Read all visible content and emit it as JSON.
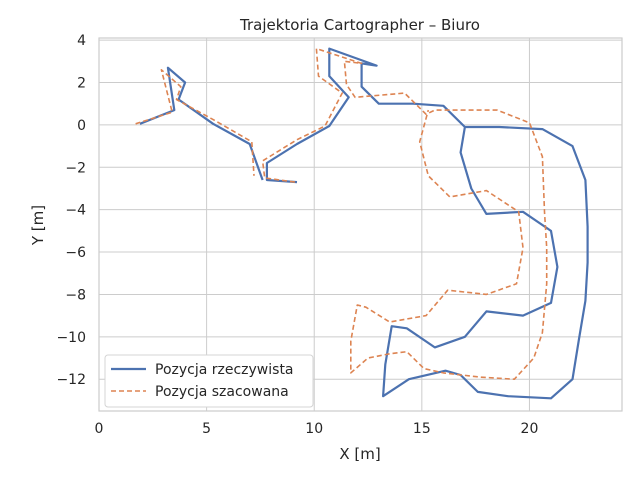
{
  "chart_data": {
    "type": "line",
    "title": "Trajektoria Cartographer – Biuro",
    "xlabel": "X [m]",
    "ylabel": "Y [m]",
    "xlim": [
      0,
      24.3
    ],
    "ylim": [
      -13.5,
      4.1
    ],
    "xticks": [
      0,
      5,
      10,
      15,
      20
    ],
    "yticks": [
      4,
      2,
      0,
      -2,
      -4,
      -6,
      -8,
      -10,
      -12
    ],
    "xtick_labels": [
      "0",
      "5",
      "10",
      "15",
      "20"
    ],
    "ytick_labels": [
      "4",
      "2",
      "0",
      "−2",
      "−4",
      "−6",
      "−8",
      "−10",
      "−12"
    ],
    "grid": true,
    "legend_position": "lower-left",
    "series": [
      {
        "name": "Pozycja rzeczywista",
        "color": "#4c72b0",
        "style": "solid",
        "points": [
          [
            9.2,
            -2.7
          ],
          [
            7.8,
            -2.6
          ],
          [
            7.8,
            -1.8
          ],
          [
            9.2,
            -0.9
          ],
          [
            10.7,
            -0.05
          ],
          [
            11.6,
            1.3
          ],
          [
            10.7,
            2.3
          ],
          [
            10.7,
            3.6
          ],
          [
            12.9,
            2.8
          ],
          [
            12.2,
            2.9
          ],
          [
            12.2,
            1.8
          ],
          [
            13.0,
            1.0
          ],
          [
            14.6,
            1.0
          ],
          [
            16.0,
            0.9
          ],
          [
            17.0,
            -0.1
          ],
          [
            18.6,
            -0.1
          ],
          [
            20.6,
            -0.2
          ],
          [
            22.0,
            -1.0
          ],
          [
            22.6,
            -2.6
          ],
          [
            22.7,
            -4.8
          ],
          [
            22.7,
            -6.5
          ],
          [
            22.6,
            -8.3
          ],
          [
            22.3,
            -10.1
          ],
          [
            22.0,
            -12.0
          ],
          [
            21.0,
            -12.9
          ],
          [
            19.0,
            -12.8
          ],
          [
            17.6,
            -12.6
          ],
          [
            16.8,
            -11.8
          ],
          [
            16.1,
            -11.6
          ],
          [
            14.4,
            -12.0
          ],
          [
            13.2,
            -12.8
          ],
          [
            13.3,
            -11.3
          ],
          [
            13.6,
            -9.5
          ],
          [
            14.3,
            -9.6
          ],
          [
            15.6,
            -10.5
          ],
          [
            17.0,
            -10.0
          ],
          [
            18.0,
            -8.8
          ],
          [
            19.7,
            -9.0
          ],
          [
            21.0,
            -8.4
          ],
          [
            21.3,
            -6.7
          ],
          [
            21.0,
            -5.0
          ],
          [
            19.7,
            -4.1
          ],
          [
            18.0,
            -4.2
          ],
          [
            17.3,
            -3.0
          ],
          [
            16.8,
            -1.3
          ],
          [
            17.0,
            -0.1
          ]
        ]
      },
      {
        "name": "Pozycja szacowana",
        "color": "#dd8452",
        "style": "dashed",
        "points": [
          [
            9.1,
            -2.7
          ],
          [
            7.7,
            -2.5
          ],
          [
            7.6,
            -1.7
          ],
          [
            9.2,
            -0.7
          ],
          [
            10.5,
            -0.05
          ],
          [
            11.3,
            1.5
          ],
          [
            10.2,
            2.3
          ],
          [
            10.1,
            3.6
          ],
          [
            12.2,
            2.9
          ],
          [
            11.4,
            3.0
          ],
          [
            11.5,
            1.9
          ],
          [
            11.9,
            1.3
          ],
          [
            14.2,
            1.5
          ],
          [
            15.2,
            0.5
          ],
          [
            15.6,
            0.7
          ],
          [
            18.5,
            0.7
          ],
          [
            20.0,
            0.1
          ],
          [
            20.6,
            -1.5
          ],
          [
            20.7,
            -4.1
          ],
          [
            20.8,
            -5.8
          ],
          [
            20.8,
            -7.5
          ],
          [
            20.6,
            -9.8
          ],
          [
            20.2,
            -11.0
          ],
          [
            19.3,
            -12.0
          ],
          [
            17.7,
            -11.9
          ],
          [
            16.0,
            -11.7
          ],
          [
            15.1,
            -11.5
          ],
          [
            14.3,
            -10.7
          ],
          [
            13.5,
            -10.8
          ],
          [
            12.5,
            -11.0
          ],
          [
            11.7,
            -11.7
          ],
          [
            11.7,
            -10.2
          ],
          [
            12.0,
            -8.5
          ],
          [
            12.4,
            -8.6
          ],
          [
            13.5,
            -9.3
          ],
          [
            15.2,
            -9.0
          ],
          [
            16.2,
            -7.8
          ],
          [
            18.0,
            -8.0
          ],
          [
            19.4,
            -7.5
          ],
          [
            19.7,
            -5.8
          ],
          [
            19.5,
            -4.1
          ],
          [
            18.0,
            -3.1
          ],
          [
            16.3,
            -3.4
          ],
          [
            15.3,
            -2.4
          ],
          [
            14.9,
            -0.8
          ],
          [
            15.3,
            0.7
          ]
        ]
      },
      {
        "name": "",
        "color": "#4c72b0",
        "style": "solid",
        "points": [
          [
            1.9,
            0.05
          ],
          [
            3.5,
            0.7
          ],
          [
            3.2,
            2.7
          ],
          [
            4.0,
            2.0
          ],
          [
            3.7,
            1.2
          ],
          [
            5.3,
            0.05
          ],
          [
            7.0,
            -0.9
          ],
          [
            7.6,
            -2.6
          ]
        ]
      },
      {
        "name": "",
        "color": "#dd8452",
        "style": "dashed",
        "points": [
          [
            1.7,
            0.05
          ],
          [
            3.4,
            0.6
          ],
          [
            2.9,
            2.6
          ],
          [
            3.8,
            1.8
          ],
          [
            3.6,
            1.2
          ],
          [
            5.4,
            0.2
          ],
          [
            7.1,
            -0.8
          ],
          [
            7.2,
            -2.4
          ]
        ]
      }
    ]
  }
}
